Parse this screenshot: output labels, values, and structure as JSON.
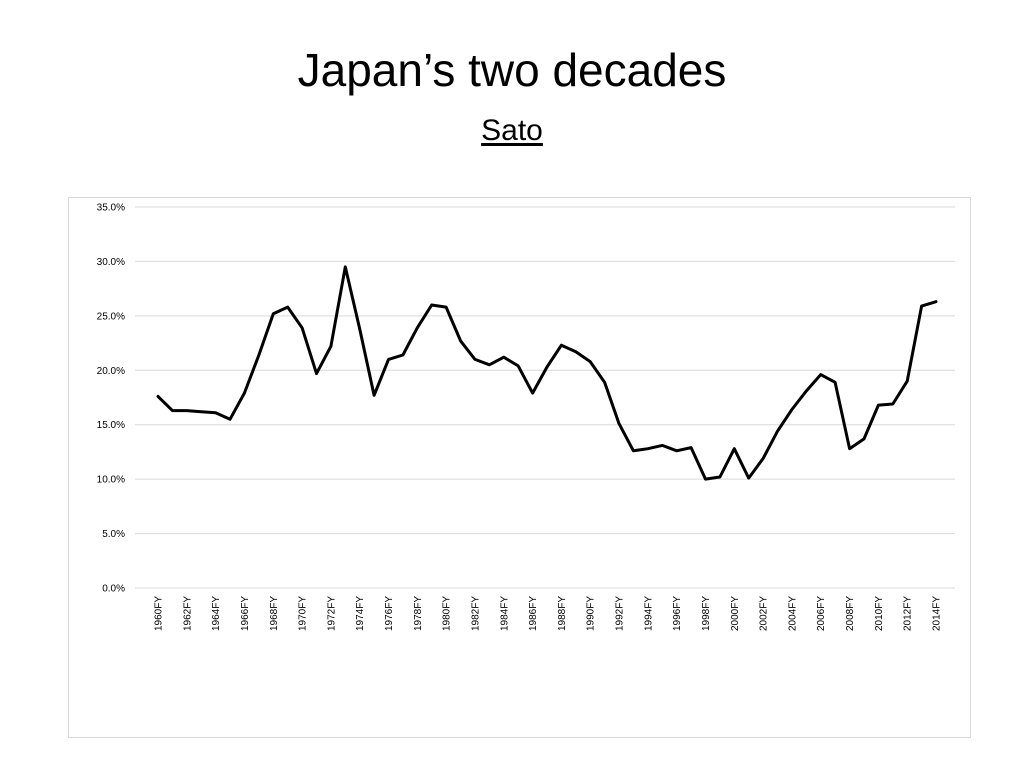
{
  "slide": {
    "title": "Japan’s two decades",
    "subtitle": "Sato"
  },
  "chart_data": {
    "type": "line",
    "title": "",
    "xlabel": "",
    "ylabel": "",
    "ylim": [
      0,
      35
    ],
    "y_ticks": [
      "0.0%",
      "5.0%",
      "10.0%",
      "15.0%",
      "20.0%",
      "25.0%",
      "30.0%",
      "35.0%"
    ],
    "x_tick_labels": [
      "1960FY",
      "1962FY",
      "1964FY",
      "1966FY",
      "1968FY",
      "1970FY",
      "1972FY",
      "1974FY",
      "1976FY",
      "1978FY",
      "1980FY",
      "1982FY",
      "1984FY",
      "1986FY",
      "1988FY",
      "1990FY",
      "1992FY",
      "1994FY",
      "1996FY",
      "1998FY",
      "2000FY",
      "2002FY",
      "2004FY",
      "2006FY",
      "2008FY",
      "2010FY",
      "2012FY",
      "2014FY"
    ],
    "grid": true,
    "legend": "none",
    "line_color": "#000000",
    "categories": [
      "1960FY",
      "1961FY",
      "1962FY",
      "1963FY",
      "1964FY",
      "1965FY",
      "1966FY",
      "1967FY",
      "1968FY",
      "1969FY",
      "1970FY",
      "1971FY",
      "1972FY",
      "1973FY",
      "1974FY",
      "1975FY",
      "1976FY",
      "1977FY",
      "1978FY",
      "1979FY",
      "1980FY",
      "1981FY",
      "1982FY",
      "1983FY",
      "1984FY",
      "1985FY",
      "1986FY",
      "1987FY",
      "1988FY",
      "1989FY",
      "1990FY",
      "1991FY",
      "1992FY",
      "1993FY",
      "1994FY",
      "1995FY",
      "1996FY",
      "1997FY",
      "1998FY",
      "1999FY",
      "2000FY",
      "2001FY",
      "2002FY",
      "2003FY",
      "2004FY",
      "2005FY",
      "2006FY",
      "2007FY",
      "2008FY",
      "2009FY",
      "2010FY",
      "2011FY",
      "2012FY",
      "2013FY",
      "2014FY"
    ],
    "series": [
      {
        "values": [
          17.6,
          16.3,
          16.3,
          16.2,
          16.1,
          15.5,
          17.9,
          21.4,
          25.2,
          25.8,
          23.9,
          19.7,
          22.2,
          29.5,
          23.8,
          17.7,
          21.0,
          21.4,
          23.9,
          26.0,
          25.8,
          22.7,
          21.0,
          20.5,
          21.2,
          20.4,
          17.9,
          20.3,
          22.3,
          21.7,
          20.8,
          18.9,
          15.1,
          12.6,
          12.8,
          13.1,
          12.6,
          12.9,
          10.0,
          10.2,
          12.8,
          10.1,
          11.9,
          14.4,
          16.4,
          18.1,
          19.6,
          18.9,
          12.8,
          13.7,
          16.8,
          16.9,
          19.0,
          25.9,
          26.3
        ]
      }
    ]
  }
}
